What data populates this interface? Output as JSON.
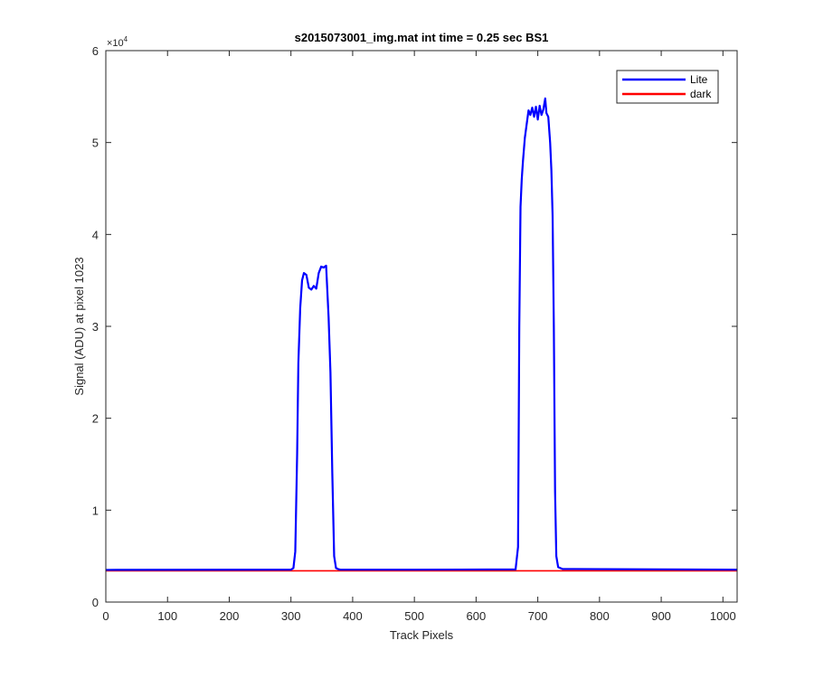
{
  "chart_data": {
    "type": "line",
    "title": "s2015073001_img.mat int time = 0.25 sec   BS1",
    "xlabel": "Track Pixels",
    "ylabel": "Signal (ADU) at pixel 1023",
    "xlim": [
      0,
      1023
    ],
    "ylim": [
      0,
      60000
    ],
    "x_ticks": [
      0,
      100,
      200,
      300,
      400,
      500,
      600,
      700,
      800,
      900,
      1000
    ],
    "x_tick_labels": [
      "0",
      "100",
      "200",
      "300",
      "400",
      "500",
      "600",
      "700",
      "800",
      "900",
      "1000"
    ],
    "y_ticks": [
      0,
      10000,
      20000,
      30000,
      40000,
      50000,
      60000
    ],
    "y_tick_labels": [
      "0",
      "1",
      "2",
      "3",
      "4",
      "5",
      "6"
    ],
    "y_exponent_label": "×10",
    "y_exponent_power": "4",
    "grid": false,
    "legend_placement": "top-right",
    "series": [
      {
        "name": "Lite",
        "color": "#0000ff",
        "x": [
          0,
          300,
          304,
          307,
          310,
          312,
          315,
          318,
          321,
          325,
          329,
          333,
          337,
          341,
          345,
          349,
          353,
          357,
          361,
          364,
          367,
          370,
          373,
          376,
          380,
          500,
          664,
          668,
          670,
          672,
          674,
          676,
          679,
          682,
          685,
          688,
          691,
          694,
          697,
          700,
          703,
          706,
          709,
          712,
          714,
          717,
          720,
          722,
          724,
          726,
          728,
          730,
          733,
          740,
          1023
        ],
        "y": [
          3500,
          3520,
          3700,
          5500,
          16000,
          26000,
          32000,
          35000,
          35800,
          35600,
          34200,
          34000,
          34400,
          34100,
          35800,
          36500,
          36400,
          36600,
          31000,
          25000,
          14000,
          5000,
          3700,
          3600,
          3520,
          3520,
          3550,
          6000,
          30000,
          43000,
          46000,
          48000,
          50500,
          52000,
          53500,
          53000,
          53800,
          52800,
          53900,
          52500,
          54000,
          53000,
          53600,
          54800,
          53200,
          52800,
          50000,
          47000,
          42000,
          30000,
          12000,
          5000,
          3800,
          3600,
          3520
        ]
      },
      {
        "name": "dark",
        "color": "#ff0000",
        "x": [
          0,
          1023
        ],
        "y": [
          3400,
          3400
        ]
      }
    ]
  }
}
